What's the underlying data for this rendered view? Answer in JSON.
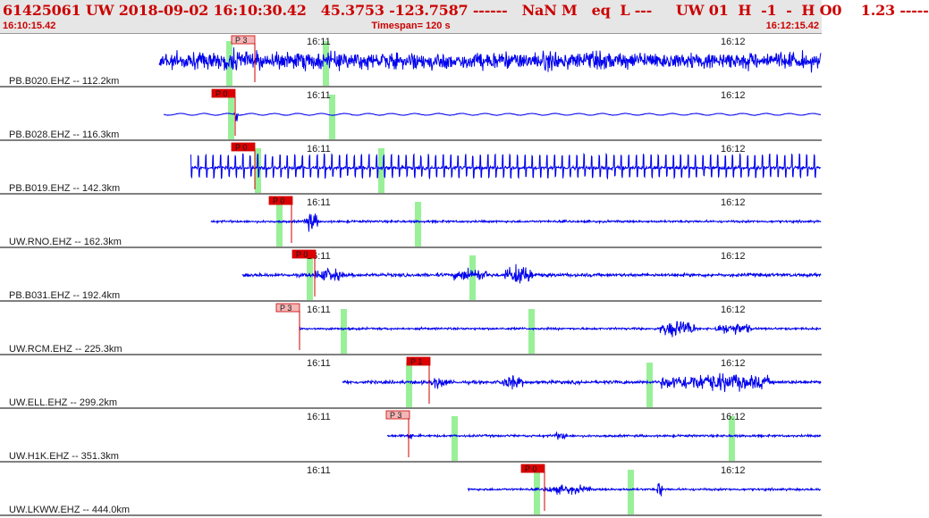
{
  "header": {
    "title": "61425061 UW 2018-09-02 16:10:30.42   45.3753 -123.7587 ------   NaN M   eq  L ---     UW 01  H  -1  -  H O0    1.23 -----",
    "start_time": "16:10:15.42",
    "timespan": "Timespan= 120 s",
    "end_time": "16:12:15.42"
  },
  "colors": {
    "waveform": "#0000ee",
    "pick_flag_automatic": "#dd0000",
    "pick_flag_manual": "#f4b6b6",
    "pick_line": "#cc0000",
    "marker": "#99f099",
    "separator": "#000000",
    "header_text": "#cc0000"
  },
  "minute_labels": [
    "16:11",
    "16:12"
  ],
  "traces": [
    {
      "label": "PB.B020.EHZ -- 112.2km",
      "pick": "P 3",
      "pick_style": "manual"
    },
    {
      "label": "PB.B028.EHZ -- 116.3km",
      "pick": "P 0",
      "pick_style": "automatic"
    },
    {
      "label": "PB.B019.EHZ -- 142.3km",
      "pick": "P 0",
      "pick_style": "automatic"
    },
    {
      "label": "UW.RNO.EHZ -- 162.3km",
      "pick": "P 0",
      "pick_style": "automatic"
    },
    {
      "label": "PB.B031.EHZ -- 192.4km",
      "pick": "P 0",
      "pick_style": "automatic"
    },
    {
      "label": "UW.RCM.EHZ -- 225.3km",
      "pick": "P 3",
      "pick_style": "manual"
    },
    {
      "label": "UW.ELL.EHZ -- 299.2km",
      "pick": "P 1",
      "pick_style": "automatic"
    },
    {
      "label": "UW.H1K.EHZ -- 351.3km",
      "pick": "P 3",
      "pick_style": "manual"
    },
    {
      "label": "UW.LKWW.EHZ -- 444.0km",
      "pick": "P 0",
      "pick_style": "automatic"
    }
  ]
}
